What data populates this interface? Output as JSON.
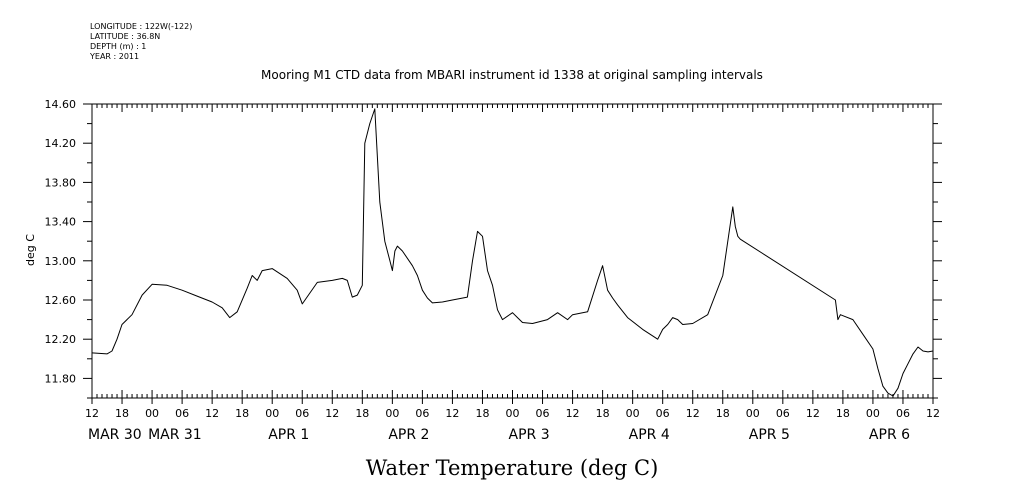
{
  "meta": {
    "longitude": "LONGITUDE : 122W(-122)",
    "latitude": "LATITUDE : 36.8N",
    "depth": "DEPTH (m) : 1",
    "year": "YEAR : 2011"
  },
  "chart_data": {
    "type": "line",
    "title": "Mooring M1 CTD data from MBARI instrument id 1338 at original sampling intervals",
    "xlabel": "Water Temperature (deg C)",
    "ylabel": "deg C",
    "ylim": [
      11.6,
      14.6
    ],
    "yticks": [
      "14.60",
      "14.20",
      "13.80",
      "13.40",
      "13.00",
      "12.60",
      "12.20",
      "11.80"
    ],
    "xlim_hours": [
      0,
      168
    ],
    "x_hour_ticks": [
      "12",
      "18",
      "00",
      "06",
      "12",
      "18",
      "00",
      "06",
      "12",
      "18",
      "00",
      "06",
      "12",
      "18",
      "00",
      "06",
      "12",
      "18",
      "00",
      "06",
      "12",
      "18",
      "00",
      "06",
      "12",
      "18",
      "00",
      "06",
      "12"
    ],
    "day_labels": [
      {
        "text": "MAR 30",
        "hour": 0
      },
      {
        "text": "MAR 31",
        "hour": 12
      },
      {
        "text": "APR  1",
        "hour": 36
      },
      {
        "text": "APR  2",
        "hour": 60
      },
      {
        "text": "APR  3",
        "hour": 84
      },
      {
        "text": "APR  4",
        "hour": 108
      },
      {
        "text": "APR  5",
        "hour": 132
      },
      {
        "text": "APR  6",
        "hour": 156
      }
    ],
    "series": [
      {
        "x": [
          "2011-03-30 12:00",
          "2011-03-30 15:00",
          "2011-03-30 16:00",
          "2011-03-30 17:00",
          "2011-03-30 18:00",
          "2011-03-30 20:00",
          "2011-03-30 22:00",
          "2011-03-31 00:00",
          "2011-03-31 03:00",
          "2011-03-31 06:00",
          "2011-03-31 09:00",
          "2011-03-31 12:00",
          "2011-03-31 14:00",
          "2011-03-31 15:30",
          "2011-03-31 17:00",
          "2011-03-31 19:00",
          "2011-03-31 20:00",
          "2011-03-31 21:00",
          "2011-03-31 22:00",
          "2011-04-01 00:00",
          "2011-04-01 03:00",
          "2011-04-01 05:00",
          "2011-04-01 06:00",
          "2011-04-01 09:00",
          "2011-04-01 12:00",
          "2011-04-01 14:00",
          "2011-04-01 15:00",
          "2011-04-01 16:00",
          "2011-04-01 17:00",
          "2011-04-01 18:00",
          "2011-04-01 18:30",
          "2011-04-01 19:30",
          "2011-04-01 20:30",
          "2011-04-01 21:30",
          "2011-04-01 22:00",
          "2011-04-01 22:30",
          "2011-04-01 23:30",
          "2011-04-02 00:00",
          "2011-04-02 00:30",
          "2011-04-02 01:00",
          "2011-04-02 02:00",
          "2011-04-02 04:00",
          "2011-04-02 05:00",
          "2011-04-02 06:00",
          "2011-04-02 07:00",
          "2011-04-02 08:00",
          "2011-04-02 10:00",
          "2011-04-02 12:00",
          "2011-04-02 15:00",
          "2011-04-02 16:00",
          "2011-04-02 17:00",
          "2011-04-02 18:00",
          "2011-04-02 19:00",
          "2011-04-02 20:00",
          "2011-04-02 21:00",
          "2011-04-02 22:00",
          "2011-04-03 00:00",
          "2011-04-03 01:00",
          "2011-04-03 02:00",
          "2011-04-03 04:00",
          "2011-04-03 07:00",
          "2011-04-03 09:00",
          "2011-04-03 11:00",
          "2011-04-03 12:00",
          "2011-04-03 15:00",
          "2011-04-03 17:00",
          "2011-04-03 18:00",
          "2011-04-03 19:00",
          "2011-04-03 20:00",
          "2011-04-03 21:00",
          "2011-04-03 23:00",
          "2011-04-04 02:00",
          "2011-04-04 05:00",
          "2011-04-04 06:00",
          "2011-04-04 07:00",
          "2011-04-04 08:00",
          "2011-04-04 09:00",
          "2011-04-04 10:00",
          "2011-04-04 12:00",
          "2011-04-04 15:00",
          "2011-04-04 18:00",
          "2011-04-04 19:00",
          "2011-04-04 20:00",
          "2011-04-04 20:30",
          "2011-04-04 21:00",
          "2011-04-04 21:30",
          "2011-04-05 16:30",
          "2011-04-05 17:00",
          "2011-04-05 17:30",
          "2011-04-05 18:00",
          "2011-04-05 20:00",
          "2011-04-05 22:00",
          "2011-04-06 00:00",
          "2011-04-06 01:00",
          "2011-04-06 02:00",
          "2011-04-06 03:00",
          "2011-04-06 04:00",
          "2011-04-06 05:00",
          "2011-04-06 06:00",
          "2011-04-06 07:00",
          "2011-04-06 08:00",
          "2011-04-06 09:00",
          "2011-04-06 10:00",
          "2011-04-06 11:00",
          "2011-04-06 12:00"
        ],
        "y": [
          12.06,
          12.05,
          12.08,
          12.2,
          12.35,
          12.45,
          12.65,
          12.76,
          12.75,
          12.7,
          12.64,
          12.58,
          12.52,
          12.42,
          12.48,
          12.72,
          12.85,
          12.8,
          12.9,
          12.92,
          12.82,
          12.7,
          12.56,
          12.78,
          12.8,
          12.82,
          12.8,
          12.63,
          12.65,
          12.75,
          14.2,
          14.4,
          14.55,
          13.6,
          13.4,
          13.2,
          13.0,
          12.9,
          13.1,
          13.15,
          13.1,
          12.95,
          12.85,
          12.7,
          12.62,
          12.57,
          12.58,
          12.6,
          12.63,
          13.0,
          13.3,
          13.25,
          12.9,
          12.75,
          12.5,
          12.4,
          12.47,
          12.42,
          12.37,
          12.36,
          12.4,
          12.47,
          12.4,
          12.45,
          12.48,
          12.8,
          12.95,
          12.7,
          12.62,
          12.55,
          12.42,
          12.3,
          12.2,
          12.3,
          12.35,
          12.42,
          12.4,
          12.35,
          12.36,
          12.45,
          12.85,
          13.2,
          13.55,
          13.35,
          13.25,
          13.22,
          12.6,
          12.4,
          12.45,
          12.44,
          12.4,
          12.25,
          12.1,
          11.9,
          11.72,
          11.65,
          11.62,
          11.7,
          11.85,
          11.95,
          12.05,
          12.12,
          12.08,
          12.07,
          12.08
        ]
      }
    ],
    "grid": false,
    "legend": "none"
  }
}
